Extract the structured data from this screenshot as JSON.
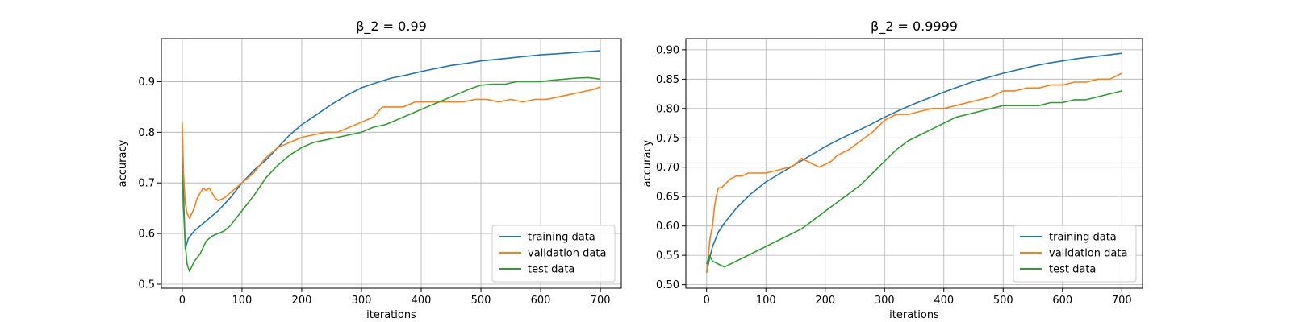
{
  "chart_data": [
    {
      "type": "line",
      "title": "β_2 = 0.99",
      "xlabel": "iterations",
      "ylabel": "accuracy",
      "xlim": [
        -35,
        735
      ],
      "ylim": [
        0.492,
        0.985
      ],
      "xticks": [
        0,
        100,
        200,
        300,
        400,
        500,
        600,
        700
      ],
      "xtick_labels": [
        "0",
        "100",
        "200",
        "300",
        "400",
        "500",
        "600",
        "700"
      ],
      "yticks": [
        0.5,
        0.6,
        0.7,
        0.8,
        0.9
      ],
      "ytick_labels": [
        "0.5",
        "0.6",
        "0.7",
        "0.8",
        "0.9"
      ],
      "grid": true,
      "legend_position": "bottom-right",
      "series": [
        {
          "name": "training data",
          "color": "#1f77b4",
          "x": [
            0,
            2,
            5,
            10,
            20,
            40,
            60,
            80,
            100,
            120,
            140,
            160,
            180,
            200,
            225,
            250,
            275,
            300,
            325,
            350,
            375,
            400,
            425,
            450,
            475,
            500,
            525,
            550,
            575,
            600,
            625,
            650,
            675,
            700
          ],
          "y": [
            0.765,
            0.68,
            0.57,
            0.59,
            0.605,
            0.625,
            0.645,
            0.67,
            0.7,
            0.725,
            0.745,
            0.77,
            0.795,
            0.815,
            0.835,
            0.855,
            0.873,
            0.888,
            0.898,
            0.907,
            0.913,
            0.92,
            0.926,
            0.932,
            0.936,
            0.941,
            0.944,
            0.947,
            0.95,
            0.953,
            0.955,
            0.957,
            0.959,
            0.961
          ]
        },
        {
          "name": "validation data",
          "color": "#ff7f0e",
          "x": [
            0,
            2,
            5,
            8,
            12,
            16,
            20,
            25,
            30,
            35,
            40,
            45,
            50,
            55,
            60,
            70,
            80,
            100,
            120,
            140,
            160,
            180,
            200,
            220,
            240,
            260,
            280,
            300,
            320,
            335,
            350,
            370,
            390,
            410,
            430,
            450,
            470,
            490,
            510,
            530,
            550,
            570,
            590,
            610,
            630,
            650,
            670,
            690,
            700
          ],
          "y": [
            0.82,
            0.72,
            0.66,
            0.64,
            0.63,
            0.64,
            0.65,
            0.67,
            0.68,
            0.69,
            0.685,
            0.69,
            0.68,
            0.67,
            0.665,
            0.67,
            0.68,
            0.7,
            0.72,
            0.75,
            0.77,
            0.78,
            0.79,
            0.795,
            0.8,
            0.8,
            0.81,
            0.82,
            0.83,
            0.85,
            0.85,
            0.85,
            0.86,
            0.86,
            0.86,
            0.86,
            0.86,
            0.865,
            0.865,
            0.86,
            0.865,
            0.86,
            0.865,
            0.865,
            0.87,
            0.875,
            0.88,
            0.885,
            0.89
          ]
        },
        {
          "name": "test data",
          "color": "#2ca02c",
          "x": [
            0,
            2,
            5,
            8,
            12,
            16,
            20,
            30,
            40,
            50,
            60,
            70,
            80,
            90,
            100,
            120,
            140,
            160,
            180,
            200,
            220,
            240,
            260,
            280,
            300,
            320,
            340,
            360,
            380,
            400,
            420,
            440,
            460,
            480,
            500,
            520,
            540,
            560,
            580,
            600,
            620,
            640,
            660,
            680,
            700
          ],
          "y": [
            0.72,
            0.65,
            0.58,
            0.54,
            0.525,
            0.535,
            0.545,
            0.56,
            0.585,
            0.595,
            0.6,
            0.605,
            0.615,
            0.63,
            0.645,
            0.675,
            0.71,
            0.735,
            0.755,
            0.77,
            0.78,
            0.785,
            0.79,
            0.795,
            0.8,
            0.81,
            0.815,
            0.825,
            0.835,
            0.845,
            0.855,
            0.865,
            0.875,
            0.885,
            0.893,
            0.895,
            0.895,
            0.9,
            0.9,
            0.9,
            0.903,
            0.905,
            0.907,
            0.908,
            0.905
          ]
        }
      ]
    },
    {
      "type": "line",
      "title": "β_2 = 0.9999",
      "xlabel": "iterations",
      "ylabel": "accuracy",
      "xlim": [
        -35,
        735
      ],
      "ylim": [
        0.494,
        0.919
      ],
      "xticks": [
        0,
        100,
        200,
        300,
        400,
        500,
        600,
        700
      ],
      "xtick_labels": [
        "0",
        "100",
        "200",
        "300",
        "400",
        "500",
        "600",
        "700"
      ],
      "yticks": [
        0.5,
        0.55,
        0.6,
        0.65,
        0.7,
        0.75,
        0.8,
        0.85,
        0.9
      ],
      "ytick_labels": [
        "0.50",
        "0.55",
        "0.60",
        "0.65",
        "0.70",
        "0.75",
        "0.80",
        "0.85",
        "0.90"
      ],
      "grid": true,
      "legend_position": "bottom-right",
      "series": [
        {
          "name": "training data",
          "color": "#1f77b4",
          "x": [
            0,
            5,
            10,
            20,
            30,
            50,
            75,
            100,
            125,
            150,
            175,
            200,
            225,
            250,
            275,
            300,
            325,
            350,
            375,
            400,
            425,
            450,
            475,
            500,
            525,
            550,
            575,
            600,
            625,
            650,
            675,
            700
          ],
          "y": [
            0.52,
            0.545,
            0.565,
            0.59,
            0.605,
            0.63,
            0.655,
            0.675,
            0.69,
            0.705,
            0.72,
            0.735,
            0.748,
            0.76,
            0.772,
            0.785,
            0.797,
            0.808,
            0.818,
            0.828,
            0.837,
            0.846,
            0.853,
            0.86,
            0.866,
            0.872,
            0.877,
            0.881,
            0.885,
            0.888,
            0.891,
            0.894
          ]
        },
        {
          "name": "validation data",
          "color": "#ff7f0e",
          "x": [
            0,
            3,
            6,
            10,
            13,
            16,
            20,
            25,
            30,
            40,
            50,
            60,
            70,
            80,
            100,
            120,
            140,
            150,
            160,
            170,
            180,
            190,
            200,
            210,
            220,
            240,
            260,
            280,
            300,
            320,
            340,
            360,
            380,
            400,
            420,
            440,
            460,
            480,
            500,
            520,
            540,
            560,
            580,
            600,
            620,
            640,
            660,
            680,
            700
          ],
          "y": [
            0.52,
            0.55,
            0.58,
            0.6,
            0.63,
            0.65,
            0.665,
            0.665,
            0.67,
            0.68,
            0.685,
            0.685,
            0.69,
            0.69,
            0.69,
            0.695,
            0.7,
            0.705,
            0.715,
            0.71,
            0.705,
            0.7,
            0.705,
            0.71,
            0.72,
            0.73,
            0.745,
            0.76,
            0.78,
            0.79,
            0.79,
            0.795,
            0.8,
            0.8,
            0.805,
            0.81,
            0.815,
            0.82,
            0.83,
            0.83,
            0.835,
            0.835,
            0.84,
            0.84,
            0.845,
            0.845,
            0.85,
            0.85,
            0.86
          ]
        },
        {
          "name": "test data",
          "color": "#2ca02c",
          "x": [
            0,
            5,
            10,
            20,
            30,
            40,
            50,
            60,
            70,
            80,
            100,
            120,
            140,
            160,
            180,
            200,
            220,
            240,
            260,
            280,
            300,
            320,
            340,
            360,
            380,
            400,
            420,
            440,
            460,
            480,
            500,
            520,
            540,
            560,
            580,
            600,
            620,
            640,
            660,
            680,
            700
          ],
          "y": [
            0.535,
            0.55,
            0.54,
            0.535,
            0.53,
            0.535,
            0.54,
            0.545,
            0.55,
            0.555,
            0.565,
            0.575,
            0.585,
            0.595,
            0.61,
            0.625,
            0.64,
            0.655,
            0.67,
            0.69,
            0.71,
            0.73,
            0.745,
            0.755,
            0.765,
            0.775,
            0.785,
            0.79,
            0.795,
            0.8,
            0.805,
            0.805,
            0.805,
            0.805,
            0.81,
            0.81,
            0.815,
            0.815,
            0.82,
            0.825,
            0.83
          ]
        }
      ]
    }
  ]
}
